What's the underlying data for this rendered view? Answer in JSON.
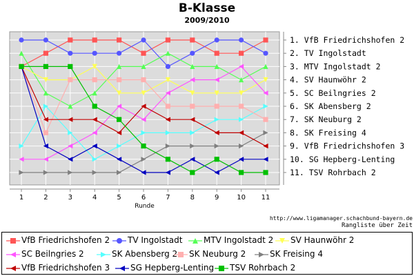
{
  "title": "B-Klasse",
  "subtitle": "2009/2010",
  "source_url": "http://www.ligamanager.schachbund-bayern.de",
  "caption": "Rangliste über Zeit",
  "chart_data": {
    "type": "line",
    "xlabel": "Runde",
    "ylabel": "",
    "x": [
      1,
      2,
      3,
      4,
      5,
      6,
      7,
      8,
      9,
      10,
      11
    ],
    "ylim": [
      1,
      11
    ],
    "y_inverted": true,
    "grid": true,
    "legend_position": "bottom",
    "right_axis_labels": [
      "1. VfB Friedrichshofen 2",
      "2. TV Ingolstadt",
      "3. MTV Ingolstadt 2",
      "4. SV Haunwöhr 2",
      "5. SC Beilngries 2",
      "6. SK Abensberg 2",
      "7. SK Neuburg 2",
      "8. SK Freising 4",
      "9. VfB Friedrichshofen 3",
      "10. SG Hepberg-Lenting",
      "11. TSV Rohrbach 2"
    ],
    "series": [
      {
        "name": "VfB Friedrichshofen 2",
        "color": "#ff5555",
        "marker": "square",
        "values": [
          3,
          2,
          1,
          1,
          1,
          2,
          1,
          1,
          2,
          2,
          1
        ]
      },
      {
        "name": "TV Ingolstadt",
        "color": "#5555ff",
        "marker": "circle",
        "values": [
          1,
          1,
          2,
          2,
          2,
          1,
          3,
          2,
          1,
          1,
          2
        ]
      },
      {
        "name": "MTV Ingolstadt 2",
        "color": "#55ff55",
        "marker": "triangle",
        "values": [
          2,
          5,
          6,
          5,
          3,
          3,
          2,
          3,
          3,
          4,
          3
        ]
      },
      {
        "name": "SV Haunwöhr 2",
        "color": "#ffff55",
        "marker": "triangle-down",
        "values": [
          3,
          4,
          4,
          3,
          5,
          5,
          4,
          5,
          5,
          5,
          4
        ]
      },
      {
        "name": "SC Beilngries 2",
        "color": "#ff55ff",
        "marker": "triangle-left",
        "values": [
          10,
          10,
          9,
          8,
          6,
          7,
          5,
          4,
          4,
          3,
          5
        ]
      },
      {
        "name": "SK Abensberg 2",
        "color": "#55ffff",
        "marker": "triangle-right",
        "values": [
          9,
          6,
          8,
          10,
          9,
          8,
          8,
          8,
          7,
          7,
          6
        ]
      },
      {
        "name": "SK Neuburg 2",
        "color": "#ffafaf",
        "marker": "square",
        "values": [
          3,
          8,
          4,
          4,
          4,
          4,
          6,
          6,
          6,
          6,
          7
        ]
      },
      {
        "name": "SK Freising 4",
        "color": "#808080",
        "marker": "triangle-right",
        "values": [
          11,
          11,
          11,
          11,
          11,
          10,
          9,
          9,
          9,
          9,
          8
        ]
      },
      {
        "name": "VfB Friedrichshofen 3",
        "color": "#c00000",
        "marker": "triangle-left",
        "values": [
          3,
          7,
          7,
          7,
          8,
          6,
          7,
          7,
          8,
          8,
          9
        ]
      },
      {
        "name": "SG Hepberg-Lenting",
        "color": "#0000c0",
        "marker": "triangle-left",
        "values": [
          3,
          9,
          10,
          9,
          10,
          11,
          11,
          10,
          11,
          10,
          10
        ]
      },
      {
        "name": "TSV Rohrbach 2",
        "color": "#00c000",
        "marker": "square",
        "values": [
          3,
          3,
          3,
          6,
          7,
          9,
          10,
          11,
          10,
          11,
          11
        ]
      }
    ]
  }
}
